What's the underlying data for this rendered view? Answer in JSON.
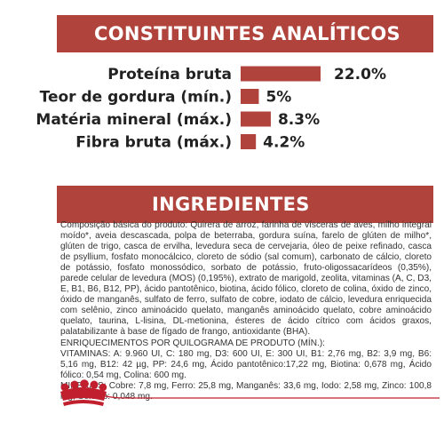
{
  "header_analiticos": "CONSTITUINTES ANALÍTICOS",
  "header_ingredientes": "INGREDIENTES",
  "chart_data": {
    "type": "bar",
    "orientation": "horizontal",
    "categories": [
      "Proteína bruta",
      "Teor de gordura (mín.)",
      "Matéria mineral (máx.)",
      "Fibra bruta (máx.)"
    ],
    "values": [
      22.0,
      5,
      8.3,
      4.2
    ],
    "value_labels": [
      "22.0%",
      "5%",
      "8.3%",
      "4.2%"
    ],
    "bar_color": "#b0443d",
    "title": "",
    "xlabel": "",
    "ylabel": ""
  },
  "ingredients": {
    "composition": "Composição básica do produto: Quirera de arroz, farinha de vísceras de aves, milho integral moído*, aveia descascada, polpa de beterraba, gordura suína, farelo de glúten de milho*, glúten de trigo, casca de ervilha, levedura seca de cervejaria, óleo de peixe refinado, casca de psyllium, fosfato monocálcico, cloreto de sódio (sal comum), carbonato de cálcio, cloreto de potássio, fosfato monossódico, sorbato de potássio, fruto-oligossacarídeos (0,35%), parede celular de levedura (MOS) (0,195%), extrato de marigold, zeolita, vitaminas (A, C, D3, E, B1, B6, B12, PP), ácido pantotênico, biotina, ácido fólico, cloreto de colina, óxido de zinco, óxido de manganês, sulfato de ferro, sulfato de cobre, iodato de cálcio, levedura enriquecida com selênio, zinco aminoácido quelato, manganês aminoácido quelato, cobre aminoácido quelato, taurina, L-lisina, DL-metionina, ésteres de ácido cítrico com ácidos graxos, palatabilizante à base de fígado de frango, antioxidante (BHA).",
    "enrichment_title": "ENRIQUECIMENTOS POR QUILOGRAMA DE PRODUTO (MÍN.):",
    "vitamins": "VITAMINAS: A: 9.960 UI, C: 180 mg, D3: 600 UI, E: 300 UI, B1: 2,76 mg, B2: 3,9 mg, B6: 5,16 mg, B12: 42 µg, PP: 24,6 mg, Ácido pantotênico:17,22 mg, Biotina: 0,678 mg, Ácido fólico: 0,54 mg, Colina: 600 mg.",
    "minerals": "MINERAIS: Cobre: 7,8 mg, Ferro: 25,8 mg, Manganês: 33,6 mg, Iodo: 2,58 mg, Zinco: 100,8 mg, Selênio: 0,048 mg."
  },
  "colors": {
    "accent": "#b0443d",
    "logo_red": "#c21f2e"
  },
  "icons": {
    "logo": "royal-canin-crown-icon"
  }
}
